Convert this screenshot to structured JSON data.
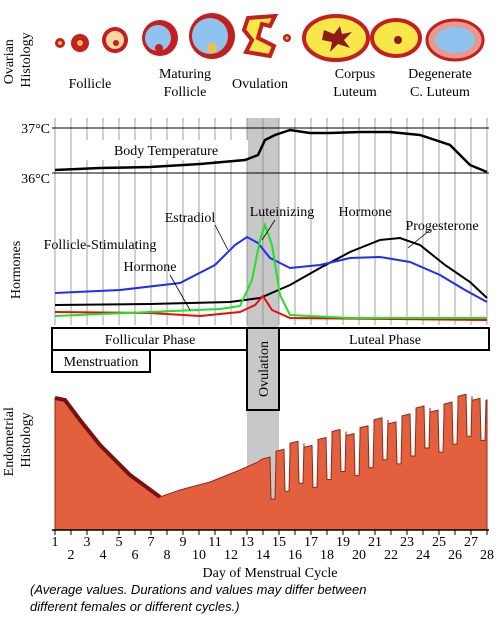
{
  "ovarian_histology": {
    "label": [
      "Ovarian",
      "Histology"
    ],
    "stages": [
      [
        "Follicle"
      ],
      [
        "Maturing",
        "Follicle"
      ],
      [
        "Ovulation"
      ],
      [
        "Corpus",
        "Luteum"
      ],
      [
        "Degenerate",
        "C. Luteum"
      ]
    ]
  },
  "temperature": {
    "label": "Body Temperature",
    "ticks": [
      "37°C",
      "36°C"
    ]
  },
  "hormones": {
    "label": "Hormones",
    "estradiol": "Estradiol",
    "lh": [
      "Luteinizing",
      "Hormone"
    ],
    "progesterone": "Progesterone",
    "fsh": [
      "Follicle-Stimulating",
      "Hormone"
    ]
  },
  "phases": {
    "follicular": "Follicular Phase",
    "ovulation": "Ovulation",
    "luteal": "Luteal Phase",
    "menstruation": "Menstruation"
  },
  "endometrium": {
    "label": [
      "Endometrial",
      "Histology"
    ]
  },
  "x_axis": {
    "days": [
      1,
      2,
      3,
      4,
      5,
      6,
      7,
      8,
      9,
      10,
      11,
      12,
      13,
      14,
      15,
      16,
      17,
      18,
      19,
      20,
      21,
      22,
      23,
      24,
      25,
      26,
      27,
      28
    ],
    "title": "Day of Menstrual Cycle"
  },
  "note": [
    "(Average values. Durations and values may differ between",
    "different females or different cycles.)"
  ]
}
